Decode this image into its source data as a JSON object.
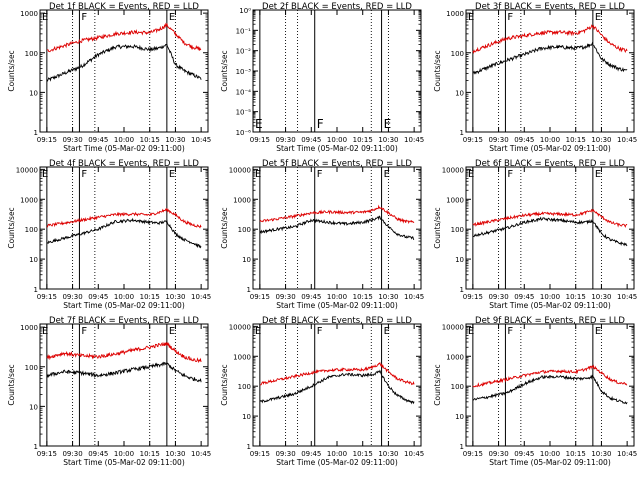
{
  "colors": {
    "events": "#000000",
    "lld": "#dd0000",
    "axes": "#000000",
    "background": "#ffffff"
  },
  "x_tick_labels": [
    "09:15",
    "09:30",
    "09:45",
    "10:00",
    "10:15",
    "10:30",
    "10:45"
  ],
  "xlabel": "Start Time (05-Mar-02 09:11:00)",
  "ylabel": "Counts/sec",
  "chart_data": [
    {
      "type": "line",
      "detector": "1f",
      "title": "Det 1f BLACK = Events, RED = LLD",
      "xlabel": "Start Time (05-Mar-02 09:11:00)",
      "ylabel": "Counts/sec",
      "y_scale": "log",
      "x_tick_labels": [
        "09:15",
        "09:30",
        "09:45",
        "10:00",
        "10:15",
        "10:30",
        "10:45"
      ],
      "y_tick_labels": [
        "1",
        "10",
        "100",
        "1000"
      ],
      "ylim": [
        1,
        1200
      ],
      "marker_lines": [
        {
          "label": "E",
          "time": "09:15",
          "style": "solid"
        },
        {
          "label": "F",
          "time": "09:34",
          "style": "solid"
        },
        {
          "label": "",
          "time": "09:30",
          "style": "dotted"
        },
        {
          "label": "",
          "time": "09:43",
          "style": "dotted"
        },
        {
          "label": "",
          "time": "10:15",
          "style": "dotted"
        },
        {
          "label": "E",
          "time": "10:25",
          "style": "solid"
        },
        {
          "label": "",
          "time": "10:30",
          "style": "dotted"
        }
      ],
      "x": [
        "09:15",
        "09:25",
        "09:35",
        "09:45",
        "09:55",
        "10:05",
        "10:15",
        "10:20",
        "10:25",
        "10:30",
        "10:35",
        "10:40",
        "10:45"
      ],
      "series": [
        {
          "name": "BLACK = Events",
          "color": "#000000",
          "values": [
            20,
            30,
            45,
            90,
            140,
            145,
            120,
            130,
            160,
            50,
            35,
            28,
            22
          ]
        },
        {
          "name": "RED = LLD",
          "color": "#dd0000",
          "values": [
            110,
            150,
            200,
            240,
            300,
            330,
            320,
            380,
            500,
            300,
            180,
            140,
            120
          ]
        }
      ]
    },
    {
      "type": "line",
      "detector": "2f",
      "title": "Det 2f BLACK = Events, RED = LLD",
      "xlabel": "Start Time (05-Mar-02 09:11:00)",
      "ylabel": "Counts/sec",
      "y_scale": "log",
      "x_tick_labels": [
        "09:15",
        "09:30",
        "09:45",
        "10:00",
        "10:15",
        "10:30",
        "10:45"
      ],
      "y_tick_labels": [
        "10⁻⁶",
        "10⁻⁵",
        "10⁻⁴",
        "10⁻³",
        "10⁻²",
        "10⁻¹",
        "10⁰"
      ],
      "ylim": [
        1e-06,
        1
      ],
      "marker_lines": [
        {
          "label": "E",
          "time": "09:15",
          "style": "solid"
        },
        {
          "label": "F",
          "time": "09:47",
          "style": "solid"
        },
        {
          "label": "",
          "time": "09:30",
          "style": "dotted"
        },
        {
          "label": "",
          "time": "09:37",
          "style": "dotted"
        },
        {
          "label": "",
          "time": "10:20",
          "style": "dotted"
        },
        {
          "label": "E",
          "time": "10:26",
          "style": "solid"
        },
        {
          "label": "",
          "time": "10:30",
          "style": "dotted"
        }
      ],
      "x": [],
      "series": []
    },
    {
      "type": "line",
      "detector": "3f",
      "title": "Det 3f BLACK = Events, RED = LLD",
      "xlabel": "Start Time (05-Mar-02 09:11:00)",
      "ylabel": "Counts/sec",
      "y_scale": "log",
      "x_tick_labels": [
        "09:15",
        "09:30",
        "09:45",
        "10:00",
        "10:15",
        "10:30",
        "10:45"
      ],
      "y_tick_labels": [
        "1",
        "10",
        "100",
        "1000"
      ],
      "ylim": [
        1,
        1200
      ],
      "marker_lines": [
        {
          "label": "E",
          "time": "09:15",
          "style": "solid"
        },
        {
          "label": "F",
          "time": "09:34",
          "style": "solid"
        },
        {
          "label": "",
          "time": "09:30",
          "style": "dotted"
        },
        {
          "label": "",
          "time": "09:43",
          "style": "dotted"
        },
        {
          "label": "",
          "time": "10:15",
          "style": "dotted"
        },
        {
          "label": "E",
          "time": "10:25",
          "style": "solid"
        },
        {
          "label": "",
          "time": "10:30",
          "style": "dotted"
        }
      ],
      "x": [
        "09:15",
        "09:25",
        "09:35",
        "09:45",
        "09:55",
        "10:05",
        "10:15",
        "10:20",
        "10:25",
        "10:30",
        "10:35",
        "10:40",
        "10:45"
      ],
      "series": [
        {
          "name": "BLACK = Events",
          "color": "#000000",
          "values": [
            30,
            45,
            65,
            90,
            130,
            140,
            130,
            140,
            170,
            70,
            50,
            40,
            35
          ]
        },
        {
          "name": "RED = LLD",
          "color": "#dd0000",
          "values": [
            110,
            160,
            230,
            270,
            320,
            330,
            310,
            360,
            480,
            280,
            170,
            130,
            110
          ]
        }
      ]
    },
    {
      "type": "line",
      "detector": "4f",
      "title": "Det 4f BLACK = Events, RED = LLD",
      "xlabel": "Start Time (05-Mar-02 09:11:00)",
      "ylabel": "Counts/sec",
      "y_scale": "log",
      "x_tick_labels": [
        "09:15",
        "09:30",
        "09:45",
        "10:00",
        "10:15",
        "10:30",
        "10:45"
      ],
      "y_tick_labels": [
        "1",
        "10",
        "100",
        "1000",
        "10000"
      ],
      "ylim": [
        1,
        12000
      ],
      "marker_lines": [
        {
          "label": "E",
          "time": "09:15",
          "style": "solid"
        },
        {
          "label": "F",
          "time": "09:34",
          "style": "solid"
        },
        {
          "label": "",
          "time": "09:30",
          "style": "dotted"
        },
        {
          "label": "",
          "time": "09:43",
          "style": "dotted"
        },
        {
          "label": "",
          "time": "10:15",
          "style": "dotted"
        },
        {
          "label": "E",
          "time": "10:25",
          "style": "solid"
        },
        {
          "label": "",
          "time": "10:30",
          "style": "dotted"
        }
      ],
      "x": [
        "09:15",
        "09:25",
        "09:35",
        "09:45",
        "09:55",
        "10:05",
        "10:15",
        "10:20",
        "10:25",
        "10:30",
        "10:35",
        "10:40",
        "10:45"
      ],
      "series": [
        {
          "name": "BLACK = Events",
          "color": "#000000",
          "values": [
            35,
            50,
            70,
            100,
            180,
            200,
            170,
            160,
            180,
            70,
            45,
            35,
            25
          ]
        },
        {
          "name": "RED = LLD",
          "color": "#dd0000",
          "values": [
            130,
            160,
            200,
            250,
            310,
            320,
            300,
            360,
            450,
            300,
            180,
            140,
            120
          ]
        }
      ]
    },
    {
      "type": "line",
      "detector": "5f",
      "title": "Det 5f BLACK = Events, RED = LLD",
      "xlabel": "Start Time (05-Mar-02 09:11:00)",
      "ylabel": "Counts/sec",
      "y_scale": "log",
      "x_tick_labels": [
        "09:15",
        "09:30",
        "09:45",
        "10:00",
        "10:15",
        "10:30",
        "10:45"
      ],
      "y_tick_labels": [
        "1",
        "10",
        "100",
        "1000",
        "10000"
      ],
      "ylim": [
        1,
        12000
      ],
      "marker_lines": [
        {
          "label": "E",
          "time": "09:15",
          "style": "solid"
        },
        {
          "label": "F",
          "time": "09:47",
          "style": "solid"
        },
        {
          "label": "",
          "time": "09:30",
          "style": "dotted"
        },
        {
          "label": "",
          "time": "09:37",
          "style": "dotted"
        },
        {
          "label": "",
          "time": "10:20",
          "style": "dotted"
        },
        {
          "label": "E",
          "time": "10:26",
          "style": "solid"
        },
        {
          "label": "",
          "time": "10:30",
          "style": "dotted"
        }
      ],
      "x": [
        "09:15",
        "09:25",
        "09:35",
        "09:45",
        "09:55",
        "10:05",
        "10:15",
        "10:20",
        "10:25",
        "10:30",
        "10:35",
        "10:40",
        "10:45"
      ],
      "series": [
        {
          "name": "BLACK = Events",
          "color": "#000000",
          "values": [
            80,
            100,
            120,
            200,
            170,
            150,
            170,
            200,
            250,
            120,
            70,
            55,
            50
          ]
        },
        {
          "name": "RED = LLD",
          "color": "#dd0000",
          "values": [
            180,
            220,
            270,
            350,
            380,
            360,
            370,
            420,
            560,
            350,
            220,
            180,
            170
          ]
        }
      ]
    },
    {
      "type": "line",
      "detector": "6f",
      "title": "Det 6f BLACK = Events, RED = LLD",
      "xlabel": "Start Time (05-Mar-02 09:11:00)",
      "ylabel": "Counts/sec",
      "y_scale": "log",
      "x_tick_labels": [
        "09:15",
        "09:30",
        "09:45",
        "10:00",
        "10:15",
        "10:30",
        "10:45"
      ],
      "y_tick_labels": [
        "1",
        "10",
        "100",
        "1000",
        "10000"
      ],
      "ylim": [
        1,
        12000
      ],
      "marker_lines": [
        {
          "label": "E",
          "time": "09:15",
          "style": "solid"
        },
        {
          "label": "F",
          "time": "09:34",
          "style": "solid"
        },
        {
          "label": "",
          "time": "09:30",
          "style": "dotted"
        },
        {
          "label": "",
          "time": "09:43",
          "style": "dotted"
        },
        {
          "label": "",
          "time": "10:15",
          "style": "dotted"
        },
        {
          "label": "E",
          "time": "10:25",
          "style": "solid"
        },
        {
          "label": "",
          "time": "10:30",
          "style": "dotted"
        }
      ],
      "x": [
        "09:15",
        "09:25",
        "09:35",
        "09:45",
        "09:55",
        "10:05",
        "10:15",
        "10:20",
        "10:25",
        "10:30",
        "10:35",
        "10:40",
        "10:45"
      ],
      "series": [
        {
          "name": "BLACK = Events",
          "color": "#000000",
          "values": [
            60,
            80,
            110,
            170,
            220,
            200,
            170,
            170,
            190,
            70,
            45,
            35,
            30
          ]
        },
        {
          "name": "RED = LLD",
          "color": "#dd0000",
          "values": [
            140,
            180,
            230,
            290,
            330,
            320,
            300,
            350,
            430,
            260,
            170,
            140,
            130
          ]
        }
      ]
    },
    {
      "type": "line",
      "detector": "7f",
      "title": "Det 7f BLACK = Events, RED = LLD",
      "xlabel": "Start Time (05-Mar-02 09:11:00)",
      "ylabel": "Counts/sec",
      "y_scale": "log",
      "x_tick_labels": [
        "09:15",
        "09:30",
        "09:45",
        "10:00",
        "10:15",
        "10:30",
        "10:45"
      ],
      "y_tick_labels": [
        "1",
        "10",
        "100",
        "1000"
      ],
      "ylim": [
        1,
        1200
      ],
      "marker_lines": [
        {
          "label": "E",
          "time": "09:15",
          "style": "solid"
        },
        {
          "label": "F",
          "time": "09:34",
          "style": "solid"
        },
        {
          "label": "",
          "time": "09:30",
          "style": "dotted"
        },
        {
          "label": "",
          "time": "09:43",
          "style": "dotted"
        },
        {
          "label": "",
          "time": "10:15",
          "style": "dotted"
        },
        {
          "label": "E",
          "time": "10:25",
          "style": "solid"
        },
        {
          "label": "",
          "time": "10:30",
          "style": "dotted"
        }
      ],
      "x": [
        "09:15",
        "09:25",
        "09:35",
        "09:45",
        "09:55",
        "10:05",
        "10:15",
        "10:20",
        "10:25",
        "10:30",
        "10:35",
        "10:40",
        "10:45"
      ],
      "series": [
        {
          "name": "BLACK = Events",
          "color": "#000000",
          "values": [
            60,
            75,
            70,
            60,
            70,
            85,
            100,
            110,
            120,
            80,
            60,
            50,
            45
          ]
        },
        {
          "name": "RED = LLD",
          "color": "#dd0000",
          "values": [
            170,
            220,
            190,
            180,
            210,
            260,
            310,
            350,
            380,
            250,
            180,
            150,
            140
          ]
        }
      ]
    },
    {
      "type": "line",
      "detector": "8f",
      "title": "Det 8f BLACK = Events, RED = LLD",
      "xlabel": "Start Time (05-Mar-02 09:11:00)",
      "ylabel": "Counts/sec",
      "y_scale": "log",
      "x_tick_labels": [
        "09:15",
        "09:30",
        "09:45",
        "10:00",
        "10:15",
        "10:30",
        "10:45"
      ],
      "y_tick_labels": [
        "1",
        "10",
        "100",
        "1000",
        "10000"
      ],
      "ylim": [
        1,
        12000
      ],
      "marker_lines": [
        {
          "label": "E",
          "time": "09:15",
          "style": "solid"
        },
        {
          "label": "F",
          "time": "09:47",
          "style": "solid"
        },
        {
          "label": "",
          "time": "09:30",
          "style": "dotted"
        },
        {
          "label": "",
          "time": "09:37",
          "style": "dotted"
        },
        {
          "label": "",
          "time": "10:20",
          "style": "dotted"
        },
        {
          "label": "E",
          "time": "10:26",
          "style": "solid"
        },
        {
          "label": "",
          "time": "10:30",
          "style": "dotted"
        }
      ],
      "x": [
        "09:15",
        "09:25",
        "09:35",
        "09:45",
        "09:55",
        "10:05",
        "10:15",
        "10:20",
        "10:25",
        "10:30",
        "10:35",
        "10:40",
        "10:45"
      ],
      "series": [
        {
          "name": "BLACK = Events",
          "color": "#000000",
          "values": [
            30,
            40,
            55,
            100,
            200,
            250,
            230,
            240,
            300,
            100,
            50,
            35,
            28
          ]
        },
        {
          "name": "RED = LLD",
          "color": "#dd0000",
          "values": [
            120,
            160,
            210,
            280,
            340,
            360,
            350,
            420,
            560,
            300,
            180,
            140,
            120
          ]
        }
      ]
    },
    {
      "type": "line",
      "detector": "9f",
      "title": "Det 9f BLACK = Events, RED = LLD",
      "xlabel": "Start Time (05-Mar-02 09:11:00)",
      "ylabel": "Counts/sec",
      "y_scale": "log",
      "x_tick_labels": [
        "09:15",
        "09:30",
        "09:45",
        "10:00",
        "10:15",
        "10:30",
        "10:45"
      ],
      "y_tick_labels": [
        "1",
        "10",
        "100",
        "1000",
        "10000"
      ],
      "ylim": [
        1,
        12000
      ],
      "marker_lines": [
        {
          "label": "E",
          "time": "09:15",
          "style": "solid"
        },
        {
          "label": "F",
          "time": "09:34",
          "style": "solid"
        },
        {
          "label": "",
          "time": "09:30",
          "style": "dotted"
        },
        {
          "label": "",
          "time": "09:43",
          "style": "dotted"
        },
        {
          "label": "",
          "time": "10:15",
          "style": "dotted"
        },
        {
          "label": "E",
          "time": "10:25",
          "style": "solid"
        },
        {
          "label": "",
          "time": "10:30",
          "style": "dotted"
        }
      ],
      "x": [
        "09:15",
        "09:25",
        "09:35",
        "09:45",
        "09:55",
        "10:05",
        "10:15",
        "10:20",
        "10:25",
        "10:30",
        "10:35",
        "10:40",
        "10:45"
      ],
      "series": [
        {
          "name": "BLACK = Events",
          "color": "#000000",
          "values": [
            35,
            45,
            60,
            120,
            200,
            210,
            180,
            180,
            210,
            70,
            40,
            32,
            28
          ]
        },
        {
          "name": "RED = LLD",
          "color": "#dd0000",
          "values": [
            100,
            130,
            170,
            230,
            300,
            320,
            300,
            360,
            450,
            280,
            170,
            130,
            120
          ]
        }
      ]
    }
  ]
}
